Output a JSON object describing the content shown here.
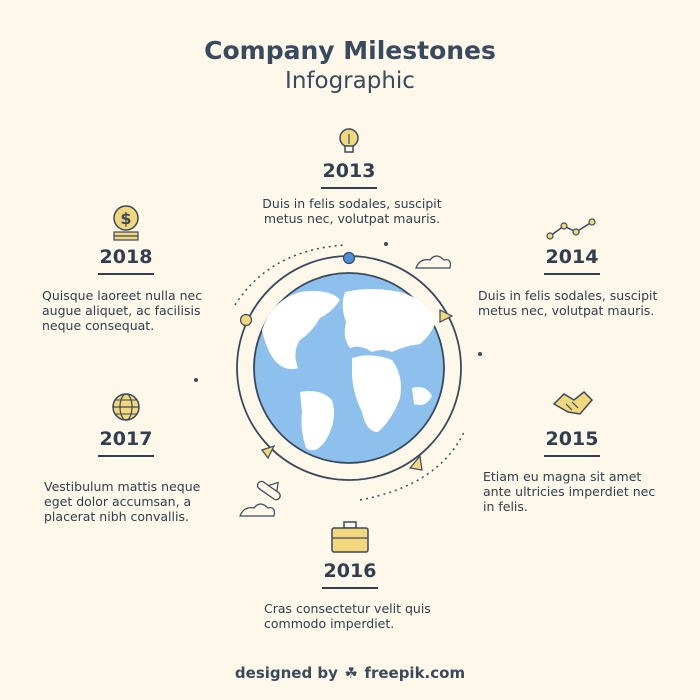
{
  "header": {
    "title": "Company Milestones",
    "subtitle": "Infographic"
  },
  "milestones": [
    {
      "year": "2013",
      "icon": "lightbulb-icon",
      "line1": "Duis in felis sodales, suscipit",
      "line2": "metus nec, volutpat mauris.",
      "line3": ""
    },
    {
      "year": "2014",
      "icon": "line-chart-icon",
      "line1": "Duis in felis sodales, suscipit",
      "line2": "metus nec, volutpat mauris.",
      "line3": ""
    },
    {
      "year": "2015",
      "icon": "handshake-icon",
      "line1": "Etiam eu magna sit amet",
      "line2": "ante ultricies imperdiet nec",
      "line3": "in felis."
    },
    {
      "year": "2016",
      "icon": "briefcase-icon",
      "line1": "Cras consectetur velit quis",
      "line2": "commodo imperdiet.",
      "line3": ""
    },
    {
      "year": "2017",
      "icon": "globe-grid-icon",
      "line1": "Vestibulum mattis neque",
      "line2": "eget dolor accumsan, a",
      "line3": "placerat nibh convallis."
    },
    {
      "year": "2018",
      "icon": "dollar-coin-icon",
      "line1": "Quisque laoreet nulla nec",
      "line2": "augue aliquet, ac facilisis",
      "line3": "neque consequat."
    }
  ],
  "footer": {
    "prefix": "designed by",
    "brand": "freepik.com"
  },
  "colors": {
    "background": "#fdf8e9",
    "text": "#2f3e50",
    "ocean": "#8ec0ee",
    "land": "#ffffff",
    "accent": "#f2d77c",
    "marker_blue": "#4a8fd8"
  }
}
